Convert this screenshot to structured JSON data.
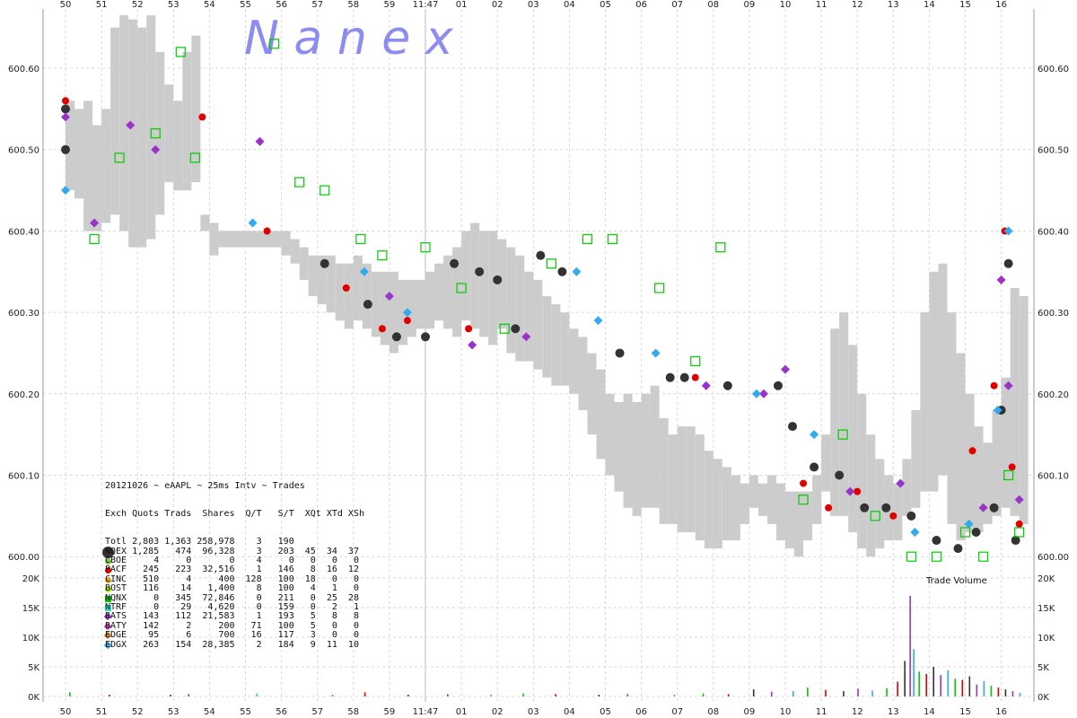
{
  "watermark": "N  a  n  e  x",
  "legend": {
    "title": "20121026 ~ eAAPL ~ 25ms Intv ~ Trades",
    "header": "Exch Quots Trads  Shares  Q/T   S/T  XQt XTd XSh",
    "rows": [
      {
        "text": "Totl 2,803 1,363 258,978    3   190",
        "color": "",
        "shape": "none"
      },
      {
        "text": "NQEX 1,285   474  96,328    3   203  45  34  37",
        "color": "#333333",
        "shape": "big"
      },
      {
        "text": "CBOE     4     0       0    4     0   0   0   0",
        "color": "#7fcc33",
        "shape": "dot"
      },
      {
        "text": "PACF   245   223  32,516    1   146   8  16  12",
        "color": "#e00000",
        "shape": "dot"
      },
      {
        "text": "CINC   510     4     400  128   100  18   0   0",
        "color": "#e8a020",
        "shape": "dot"
      },
      {
        "text": "BOST   116    14   1,400    8   100   4   1   0",
        "color": "#aaee00",
        "shape": "dot"
      },
      {
        "text": "NQNX     0   345  72,846    0   211   0  25  28",
        "color": "#00cc00",
        "shape": "sq"
      },
      {
        "text": "NTRF     0    29   4,620    0   159   0   2   1",
        "color": "#33ddcc",
        "shape": "sq"
      },
      {
        "text": "BATS   143   112  21,583    1   193   5   8   8",
        "color": "#9933cc",
        "shape": "dia"
      },
      {
        "text": "BATY   142     2     200   71   100   5   0   0",
        "color": "#cc44cc",
        "shape": "dia"
      },
      {
        "text": "EDGE    95     6     700   16   117   3   0   0",
        "color": "#cc8822",
        "shape": "dia"
      },
      {
        "text": "EDGX   263   154  28,385    2   184   9  11  10",
        "color": "#33aaee",
        "shape": "dia"
      }
    ]
  },
  "volume_title": "Trade Volume",
  "colors": {
    "nbbo_band": "#cccccc",
    "grid": "#d8d8d8",
    "nqex": "#333333",
    "pacf": "#e00000",
    "nqnx": "#00cc00",
    "bats": "#9933cc",
    "edgx": "#33aaee",
    "ntrf": "#33ddcc",
    "boston": "#aaee00",
    "edge": "#cc8822"
  },
  "chart_data": [
    {
      "type": "scatter",
      "title": "20121026 ~ eAAPL ~ 25ms Intv ~ Trades",
      "xlabel": "",
      "ylabel": "",
      "x_ticks": [
        "50",
        "51",
        "52",
        "53",
        "54",
        "55",
        "56",
        "57",
        "58",
        "59",
        "11:47",
        "01",
        "02",
        "03",
        "04",
        "05",
        "06",
        "07",
        "08",
        "09",
        "10",
        "11",
        "12",
        "13",
        "14",
        "15",
        "16"
      ],
      "y_ticks": [
        "600.00",
        "600.10",
        "600.20",
        "600.30",
        "600.40",
        "600.50",
        "600.60"
      ],
      "ylim": [
        599.98,
        600.665
      ],
      "grid": true,
      "nbbo_band": {
        "x": [
          0,
          0.25,
          0.5,
          0.75,
          1,
          1.25,
          1.5,
          1.75,
          2,
          2.25,
          2.5,
          2.75,
          3,
          3.25,
          3.5,
          3.75,
          4,
          4.25,
          4.5,
          4.75,
          5,
          5.25,
          5.5,
          5.75,
          6,
          6.25,
          6.5,
          6.75,
          7,
          7.25,
          7.5,
          7.75,
          8,
          8.25,
          8.5,
          8.75,
          9,
          9.25,
          9.5,
          9.75,
          10,
          10.25,
          10.5,
          10.75,
          11,
          11.25,
          11.5,
          11.75,
          12,
          12.25,
          12.5,
          12.75,
          13,
          13.25,
          13.5,
          13.75,
          14,
          14.25,
          14.5,
          14.75,
          15,
          15.25,
          15.5,
          15.75,
          16,
          16.25,
          16.5,
          16.75,
          17,
          17.25,
          17.5,
          17.75,
          18,
          18.25,
          18.5,
          18.75,
          19,
          19.25,
          19.5,
          19.75,
          20,
          20.25,
          20.5,
          20.75,
          21,
          21.25,
          21.5,
          21.75,
          22,
          22.25,
          22.5,
          22.75,
          23,
          23.25,
          23.5,
          23.75,
          24,
          24.25,
          24.5,
          24.75,
          25,
          25.25,
          25.5,
          25.75,
          26,
          26.25,
          26.5
        ],
        "low": [
          600.45,
          600.44,
          600.4,
          600.4,
          600.41,
          600.42,
          600.4,
          600.38,
          600.38,
          600.39,
          600.42,
          600.46,
          600.45,
          600.45,
          600.46,
          600.4,
          600.37,
          600.38,
          600.38,
          600.38,
          600.38,
          600.38,
          600.38,
          600.38,
          600.37,
          600.36,
          600.34,
          600.32,
          600.31,
          600.3,
          600.29,
          600.28,
          600.29,
          600.28,
          600.27,
          600.26,
          600.25,
          600.26,
          600.27,
          600.28,
          600.28,
          600.29,
          600.28,
          600.27,
          600.29,
          600.28,
          600.27,
          600.26,
          600.28,
          600.25,
          600.24,
          600.24,
          600.23,
          600.22,
          600.21,
          600.21,
          600.2,
          600.18,
          600.15,
          600.12,
          600.1,
          600.08,
          600.06,
          600.05,
          600.06,
          600.06,
          600.04,
          600.04,
          600.03,
          600.03,
          600.02,
          600.01,
          600.01,
          600.02,
          600.02,
          600.04,
          600.06,
          600.05,
          600.04,
          600.02,
          600.01,
          600.0,
          600.02,
          600.04,
          600.08,
          600.05,
          600.05,
          600.03,
          600.01,
          600.0,
          600.01,
          600.02,
          600.02,
          600.05,
          600.06,
          600.08,
          600.08,
          600.1,
          600.04,
          600.02,
          600.03,
          600.03,
          600.04,
          600.05,
          600.06,
          600.05,
          600.04
        ],
        "high": [
          600.56,
          600.55,
          600.56,
          600.53,
          600.55,
          600.65,
          600.68,
          600.66,
          600.65,
          600.68,
          600.62,
          600.58,
          600.56,
          600.62,
          600.64,
          600.42,
          600.41,
          600.4,
          600.4,
          600.4,
          600.4,
          600.4,
          600.4,
          600.4,
          600.4,
          600.39,
          600.38,
          600.37,
          600.37,
          600.37,
          600.36,
          600.36,
          600.37,
          600.36,
          600.35,
          600.35,
          600.35,
          600.34,
          600.34,
          600.34,
          600.35,
          600.36,
          600.37,
          600.38,
          600.4,
          600.41,
          600.4,
          600.4,
          600.39,
          600.38,
          600.37,
          600.35,
          600.34,
          600.32,
          600.31,
          600.3,
          600.28,
          600.27,
          600.25,
          600.23,
          600.2,
          600.19,
          600.2,
          600.19,
          600.2,
          600.21,
          600.17,
          600.15,
          600.16,
          600.16,
          600.15,
          600.13,
          600.12,
          600.11,
          600.1,
          600.09,
          600.1,
          600.09,
          600.1,
          600.09,
          600.08,
          600.08,
          600.08,
          600.1,
          600.15,
          600.28,
          600.3,
          600.26,
          600.2,
          600.15,
          600.12,
          600.1,
          600.09,
          600.12,
          600.18,
          600.3,
          600.35,
          600.36,
          600.3,
          600.25,
          600.2,
          600.16,
          600.14,
          600.18,
          600.22,
          600.33,
          600.32
        ]
      },
      "series": [
        {
          "name": "NQEX",
          "shape": "circle",
          "color": "#333333",
          "points": [
            [
              0,
              600.5
            ],
            [
              0,
              600.55
            ],
            [
              7.2,
              600.36
            ],
            [
              8.4,
              600.31
            ],
            [
              9.2,
              600.27
            ],
            [
              10,
              600.27
            ],
            [
              10.8,
              600.36
            ],
            [
              11.5,
              600.35
            ],
            [
              12,
              600.34
            ],
            [
              12.5,
              600.28
            ],
            [
              13.2,
              600.37
            ],
            [
              13.8,
              600.35
            ],
            [
              15.4,
              600.25
            ],
            [
              16.8,
              600.22
            ],
            [
              17.2,
              600.22
            ],
            [
              18.4,
              600.21
            ],
            [
              19.8,
              600.21
            ],
            [
              20.2,
              600.16
            ],
            [
              20.8,
              600.11
            ],
            [
              21.5,
              600.1
            ],
            [
              22.2,
              600.06
            ],
            [
              22.8,
              600.06
            ],
            [
              23.5,
              600.05
            ],
            [
              24.2,
              600.02
            ],
            [
              24.8,
              600.01
            ],
            [
              25.3,
              600.03
            ],
            [
              25.8,
              600.06
            ],
            [
              26,
              600.18
            ],
            [
              26.2,
              600.36
            ],
            [
              26.4,
              600.02
            ]
          ]
        },
        {
          "name": "PACF",
          "shape": "circle",
          "color": "#e00000",
          "points": [
            [
              0,
              600.56
            ],
            [
              3.8,
              600.54
            ],
            [
              5.6,
              600.4
            ],
            [
              7.8,
              600.33
            ],
            [
              8.8,
              600.28
            ],
            [
              9.5,
              600.29
            ],
            [
              11.2,
              600.28
            ],
            [
              17.5,
              600.22
            ],
            [
              20.5,
              600.09
            ],
            [
              21.2,
              600.06
            ],
            [
              22,
              600.08
            ],
            [
              23,
              600.05
            ],
            [
              25.2,
              600.13
            ],
            [
              25.8,
              600.21
            ],
            [
              26.1,
              600.4
            ],
            [
              26.3,
              600.11
            ],
            [
              26.5,
              600.04
            ]
          ]
        },
        {
          "name": "NQNX",
          "shape": "square",
          "color": "#00cc00",
          "points": [
            [
              0.8,
              600.39
            ],
            [
              1.5,
              600.49
            ],
            [
              2.5,
              600.52
            ],
            [
              3.2,
              600.62
            ],
            [
              3.6,
              600.49
            ],
            [
              5.8,
              600.63
            ],
            [
              6.5,
              600.46
            ],
            [
              7.2,
              600.45
            ],
            [
              8.2,
              600.39
            ],
            [
              8.8,
              600.37
            ],
            [
              10,
              600.38
            ],
            [
              11,
              600.33
            ],
            [
              12.2,
              600.28
            ],
            [
              13.5,
              600.36
            ],
            [
              14.5,
              600.39
            ],
            [
              15.2,
              600.39
            ],
            [
              16.5,
              600.33
            ],
            [
              17.5,
              600.24
            ],
            [
              18.2,
              600.38
            ],
            [
              20.5,
              600.07
            ],
            [
              21.6,
              600.15
            ],
            [
              22.5,
              600.05
            ],
            [
              23.5,
              600.0
            ],
            [
              24.2,
              600.0
            ],
            [
              25,
              600.03
            ],
            [
              25.5,
              600.0
            ],
            [
              26.2,
              600.1
            ],
            [
              26.5,
              600.03
            ]
          ]
        },
        {
          "name": "BATS",
          "shape": "diamond",
          "color": "#9933cc",
          "points": [
            [
              0,
              600.54
            ],
            [
              0.8,
              600.41
            ],
            [
              1.8,
              600.53
            ],
            [
              2.5,
              600.5
            ],
            [
              5.4,
              600.51
            ],
            [
              9,
              600.32
            ],
            [
              11.3,
              600.26
            ],
            [
              12.8,
              600.27
            ],
            [
              17.8,
              600.21
            ],
            [
              19.4,
              600.2
            ],
            [
              20,
              600.23
            ],
            [
              21.8,
              600.08
            ],
            [
              23.2,
              600.09
            ],
            [
              25.5,
              600.06
            ],
            [
              26,
              600.34
            ],
            [
              26.2,
              600.21
            ],
            [
              26.5,
              600.07
            ]
          ]
        },
        {
          "name": "EDGX",
          "shape": "diamond",
          "color": "#33aaee",
          "points": [
            [
              0,
              600.45
            ],
            [
              5.2,
              600.41
            ],
            [
              8.3,
              600.35
            ],
            [
              9.5,
              600.3
            ],
            [
              14.2,
              600.35
            ],
            [
              14.8,
              600.29
            ],
            [
              16.4,
              600.25
            ],
            [
              19.2,
              600.2
            ],
            [
              20.8,
              600.15
            ],
            [
              23.6,
              600.03
            ],
            [
              25.1,
              600.04
            ],
            [
              25.9,
              600.18
            ],
            [
              26.2,
              600.4
            ]
          ]
        }
      ]
    },
    {
      "type": "bar",
      "title": "Trade Volume",
      "xlabel": "",
      "ylabel": "",
      "y_ticks": [
        "0K",
        "5K",
        "10K",
        "15K",
        "20K"
      ],
      "ylim": [
        0,
        20000
      ],
      "grid": true,
      "notes": "Most volume clustered between minutes 13 and 16; peak spike ~17K near minute 13.5",
      "values": [
        [
          0.1,
          700
        ],
        [
          1.2,
          300
        ],
        [
          2.9,
          300
        ],
        [
          3.4,
          400
        ],
        [
          5.3,
          500
        ],
        [
          7.4,
          300
        ],
        [
          8.3,
          700
        ],
        [
          9.5,
          300
        ],
        [
          10.6,
          400
        ],
        [
          11.8,
          300
        ],
        [
          12.7,
          500
        ],
        [
          13.6,
          400
        ],
        [
          14.8,
          300
        ],
        [
          15.6,
          400
        ],
        [
          16.9,
          300
        ],
        [
          17.7,
          500
        ],
        [
          18.4,
          400
        ],
        [
          19.1,
          1200
        ],
        [
          19.6,
          800
        ],
        [
          20.2,
          900
        ],
        [
          20.6,
          1500
        ],
        [
          21.1,
          1100
        ],
        [
          21.6,
          900
        ],
        [
          22.0,
          1300
        ],
        [
          22.4,
          1000
        ],
        [
          22.8,
          1400
        ],
        [
          23.1,
          2500
        ],
        [
          23.3,
          6000
        ],
        [
          23.45,
          17000
        ],
        [
          23.55,
          8000
        ],
        [
          23.7,
          4200
        ],
        [
          23.9,
          3800
        ],
        [
          24.1,
          5000
        ],
        [
          24.3,
          3600
        ],
        [
          24.5,
          4400
        ],
        [
          24.7,
          3000
        ],
        [
          24.9,
          2800
        ],
        [
          25.1,
          3400
        ],
        [
          25.3,
          2000
        ],
        [
          25.5,
          2600
        ],
        [
          25.7,
          1800
        ],
        [
          25.9,
          1500
        ],
        [
          26.1,
          1200
        ],
        [
          26.3,
          900
        ],
        [
          26.5,
          600
        ]
      ]
    }
  ]
}
